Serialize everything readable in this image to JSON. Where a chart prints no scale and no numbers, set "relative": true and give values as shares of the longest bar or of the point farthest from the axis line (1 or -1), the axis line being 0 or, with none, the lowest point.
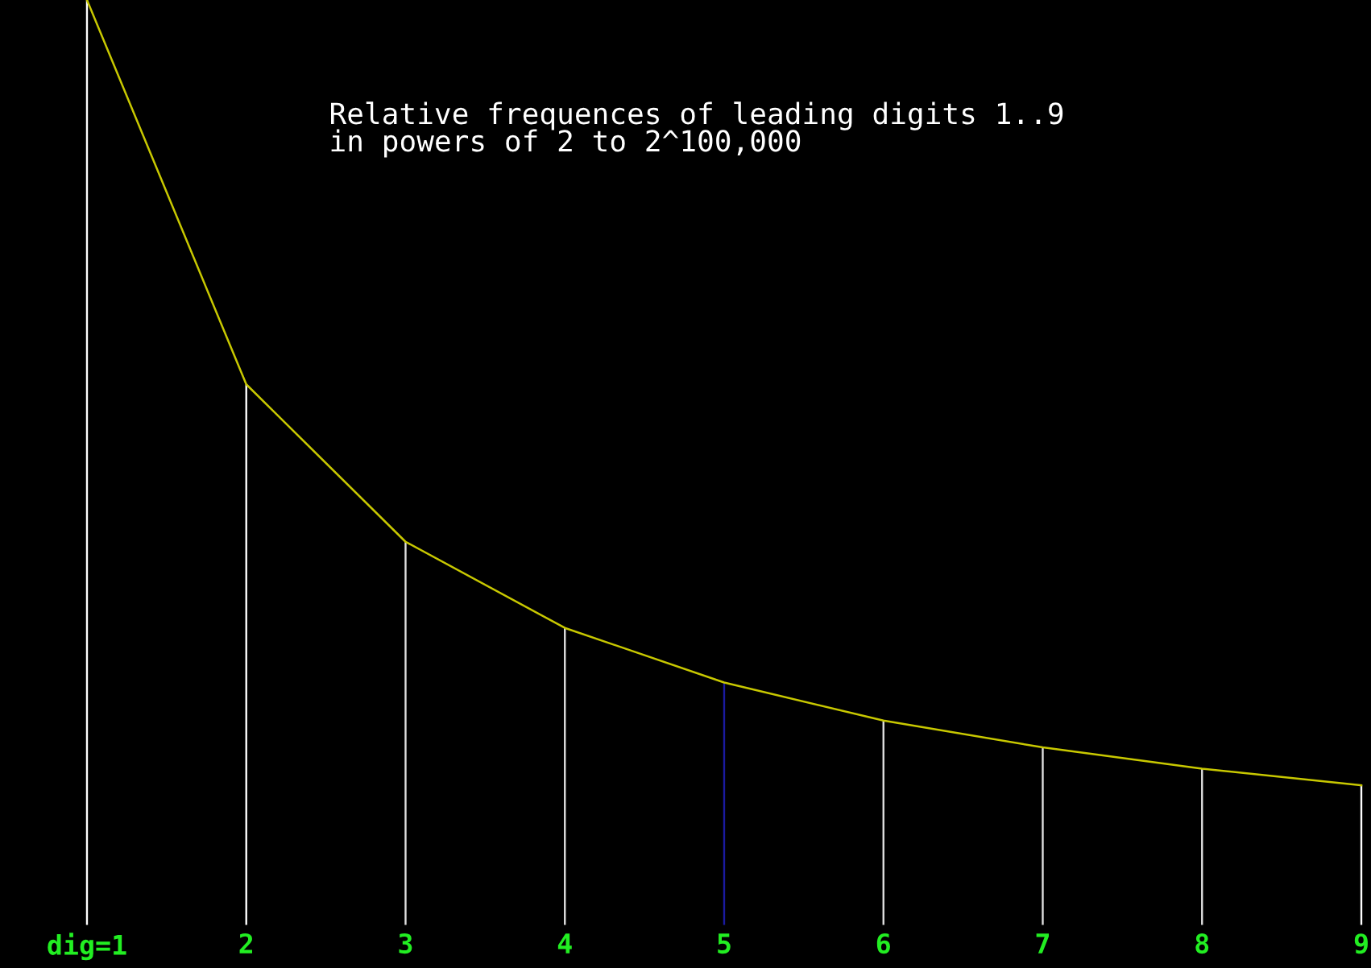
{
  "chart_data": {
    "type": "bar",
    "title": "Relative frequences of leading digits 1..9\nin powers of 2 to 2^100,000",
    "relative": true,
    "categories": [
      "dig=1",
      "2",
      "3",
      "4",
      "5",
      "6",
      "7",
      "8",
      "9"
    ],
    "series": [
      {
        "colors": [
          "#ffffff",
          "#ffffff",
          "#e0e0e0",
          "#e0e0e0",
          "#1a1aa0",
          "#e0e0e0",
          "#e0e0e0",
          "#e0e0e0",
          "#ffffff"
        ],
        "values": [
          1,
          0.585,
          0.415,
          0.322,
          0.263,
          0.222,
          0.193,
          0.17,
          0.152
        ]
      },
      {
        "type": "line",
        "color": "#c8c800",
        "values": [
          1,
          0.585,
          0.415,
          0.322,
          0.263,
          0.222,
          0.193,
          0.17,
          0.152
        ]
      }
    ],
    "grid": false,
    "legend": false
  }
}
